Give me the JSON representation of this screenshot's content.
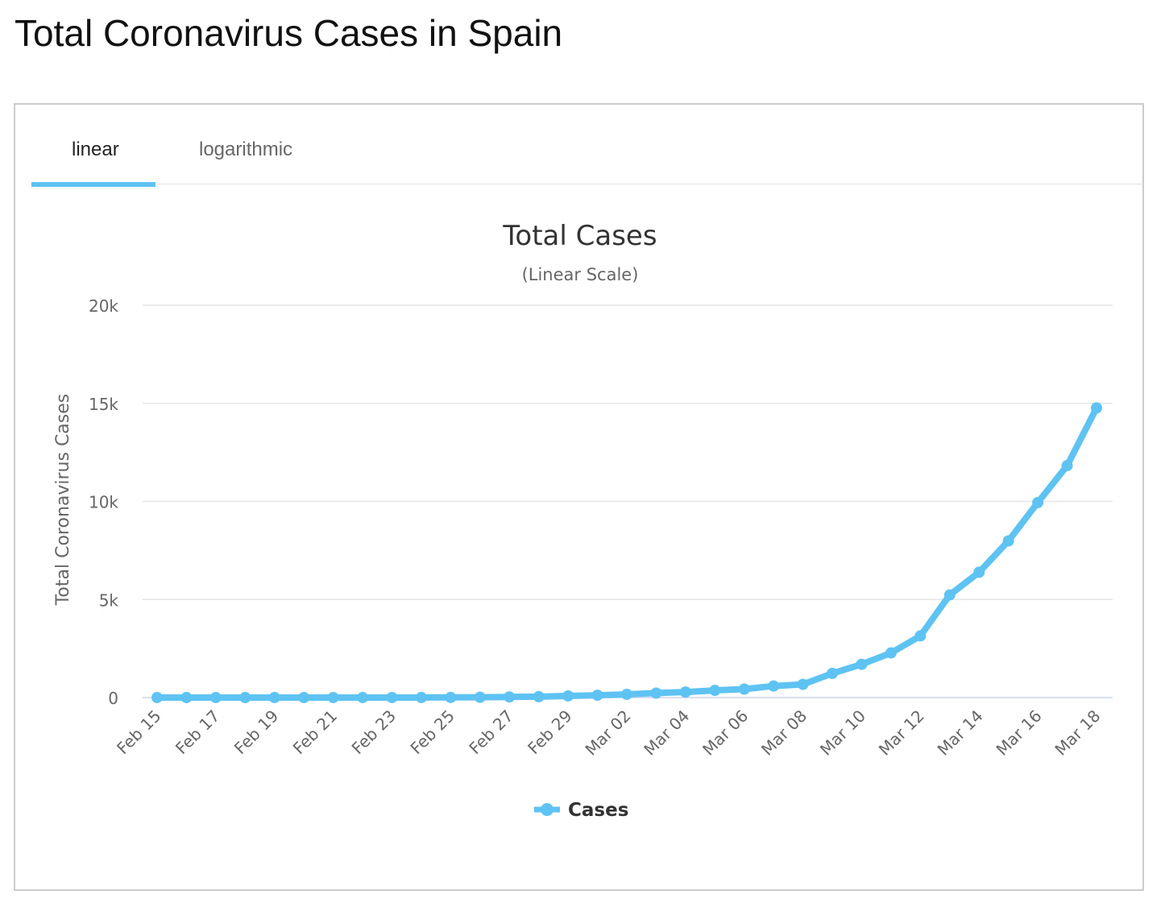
{
  "page": {
    "title": "Total Coronavirus Cases in Spain"
  },
  "tabs": [
    {
      "label": "linear",
      "active": true
    },
    {
      "label": "logarithmic",
      "active": false
    }
  ],
  "colors": {
    "series": "#5ec3f2",
    "grid": "#e6e6e6",
    "axis_text": "#666666"
  },
  "chart_data": {
    "type": "line",
    "title": "Total Cases",
    "subtitle": "(Linear Scale)",
    "ylabel": "Total Coronavirus Cases",
    "xlabel": "",
    "ylim": [
      0,
      20000
    ],
    "yticks": [
      0,
      5000,
      10000,
      15000,
      20000
    ],
    "ytick_labels": [
      "0",
      "5k",
      "10k",
      "15k",
      "20k"
    ],
    "x_tick_labels": [
      "Feb 15",
      "Feb 17",
      "Feb 19",
      "Feb 21",
      "Feb 23",
      "Feb 25",
      "Feb 27",
      "Feb 29",
      "Mar 02",
      "Mar 04",
      "Mar 06",
      "Mar 08",
      "Mar 10",
      "Mar 12",
      "Mar 14",
      "Mar 16",
      "Mar 18"
    ],
    "legend": {
      "position": "bottom-center"
    },
    "grid": true,
    "categories": [
      "Feb 15",
      "Feb 16",
      "Feb 17",
      "Feb 18",
      "Feb 19",
      "Feb 20",
      "Feb 21",
      "Feb 22",
      "Feb 23",
      "Feb 24",
      "Feb 25",
      "Feb 26",
      "Feb 27",
      "Feb 28",
      "Feb 29",
      "Mar 01",
      "Mar 02",
      "Mar 03",
      "Mar 04",
      "Mar 05",
      "Mar 06",
      "Mar 07",
      "Mar 08",
      "Mar 09",
      "Mar 10",
      "Mar 11",
      "Mar 12",
      "Mar 13",
      "Mar 14",
      "Mar 15",
      "Mar 16",
      "Mar 17",
      "Mar 18"
    ],
    "series": [
      {
        "name": "Cases",
        "color": "#5ec3f2",
        "values": [
          2,
          2,
          2,
          2,
          2,
          2,
          2,
          2,
          2,
          3,
          7,
          15,
          32,
          45,
          84,
          120,
          165,
          228,
          282,
          365,
          430,
          589,
          674,
          1231,
          1695,
          2277,
          3146,
          5232,
          6391,
          7988,
          9942,
          11826,
          14769
        ]
      }
    ]
  }
}
